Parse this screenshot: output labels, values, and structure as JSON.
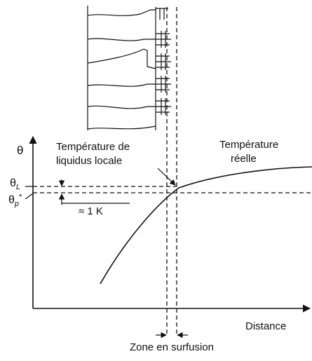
{
  "y_axis": {
    "label": "θ"
  },
  "x_axis": {
    "label": "Distance"
  },
  "levels": [
    {
      "symbol": "θ",
      "subscript": "L"
    },
    {
      "symbol": "θ",
      "subscript": "p",
      "superscript": "*"
    }
  ],
  "annotations": {
    "liquidus": [
      "Température de",
      "liquidus locale"
    ],
    "real": [
      "Température",
      "réelle"
    ],
    "gap": "≈ 1 K",
    "zone": "Zone en surfusion"
  }
}
